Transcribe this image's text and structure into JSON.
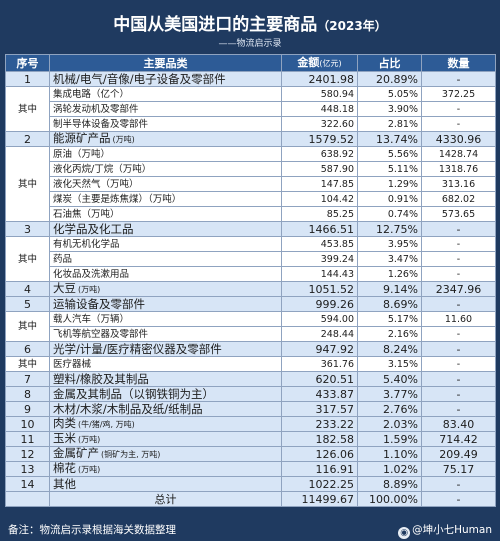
{
  "header": {
    "title": "中国从美国进口的主要商品",
    "year": "（2023年）",
    "subtitle": "——物流启示录"
  },
  "columns": {
    "seq": "序号",
    "category": "主要品类",
    "amount": "金额",
    "amount_unit": "(亿元)",
    "share": "占比",
    "quantity": "数量"
  },
  "rows": [
    {
      "seq": "1",
      "name": "机械/电气/音像/电子设备及零部件",
      "unit": "",
      "amount": "2401.98",
      "share": "20.89%",
      "qty": "-"
    },
    {
      "seq": "",
      "name": "集成电路（亿个）",
      "unit": "",
      "amount": "580.94",
      "share": "5.05%",
      "qty": "372.25"
    },
    {
      "seq": "",
      "name": "涡轮发动机及零部件",
      "unit": "",
      "amount": "448.18",
      "share": "3.90%",
      "qty": "-"
    },
    {
      "seq": "",
      "name": "制半导体设备及零部件",
      "unit": "",
      "amount": "322.60",
      "share": "2.81%",
      "qty": "-"
    },
    {
      "seq": "2",
      "name": "能源矿产品",
      "unit": "(万吨)",
      "amount": "1579.52",
      "share": "13.74%",
      "qty": "4330.96"
    },
    {
      "seq": "",
      "name": "原油（万吨）",
      "unit": "",
      "amount": "638.92",
      "share": "5.56%",
      "qty": "1428.74"
    },
    {
      "seq": "",
      "name": "液化丙烷/丁烷（万吨）",
      "unit": "",
      "amount": "587.90",
      "share": "5.11%",
      "qty": "1318.76"
    },
    {
      "seq": "",
      "name": "液化天然气（万吨）",
      "unit": "",
      "amount": "147.85",
      "share": "1.29%",
      "qty": "313.16"
    },
    {
      "seq": "",
      "name": "煤炭（主要是炼焦煤）（万吨）",
      "unit": "",
      "amount": "104.42",
      "share": "0.91%",
      "qty": "682.02"
    },
    {
      "seq": "",
      "name": "石油焦（万吨）",
      "unit": "",
      "amount": "85.25",
      "share": "0.74%",
      "qty": "573.65"
    },
    {
      "seq": "3",
      "name": "化学品及化工品",
      "unit": "",
      "amount": "1466.51",
      "share": "12.75%",
      "qty": "-"
    },
    {
      "seq": "",
      "name": "有机无机化学品",
      "unit": "",
      "amount": "453.85",
      "share": "3.95%",
      "qty": "-"
    },
    {
      "seq": "",
      "name": "药品",
      "unit": "",
      "amount": "399.24",
      "share": "3.47%",
      "qty": "-"
    },
    {
      "seq": "",
      "name": "化妆品及洗漱用品",
      "unit": "",
      "amount": "144.43",
      "share": "1.26%",
      "qty": "-"
    },
    {
      "seq": "4",
      "name": "大豆",
      "unit": "(万吨)",
      "amount": "1051.52",
      "share": "9.14%",
      "qty": "2347.96"
    },
    {
      "seq": "5",
      "name": "运输设备及零部件",
      "unit": "",
      "amount": "999.26",
      "share": "8.69%",
      "qty": "-"
    },
    {
      "seq": "",
      "name": "载人汽车（万辆）",
      "unit": "",
      "amount": "594.00",
      "share": "5.17%",
      "qty": "11.60"
    },
    {
      "seq": "",
      "name": "飞机等航空器及零部件",
      "unit": "",
      "amount": "248.44",
      "share": "2.16%",
      "qty": "-"
    },
    {
      "seq": "6",
      "name": "光学/计量/医疗精密仪器及零部件",
      "unit": "",
      "amount": "947.92",
      "share": "8.24%",
      "qty": "-"
    },
    {
      "seq": "",
      "name": "医疗器械",
      "unit": "",
      "amount": "361.76",
      "share": "3.15%",
      "qty": "-"
    },
    {
      "seq": "7",
      "name": "塑料/橡胶及其制品",
      "unit": "",
      "amount": "620.51",
      "share": "5.40%",
      "qty": "-"
    },
    {
      "seq": "8",
      "name": "金属及其制品（以钢铁铜为主）",
      "unit": "",
      "amount": "433.87",
      "share": "3.77%",
      "qty": "-"
    },
    {
      "seq": "9",
      "name": "木材/木浆/木制品及纸/纸制品",
      "unit": "",
      "amount": "317.57",
      "share": "2.76%",
      "qty": "-"
    },
    {
      "seq": "10",
      "name": "肉类",
      "unit": "(牛/猪/鸡, 万吨)",
      "amount": "233.22",
      "share": "2.03%",
      "qty": "83.40"
    },
    {
      "seq": "11",
      "name": "玉米",
      "unit": "(万吨)",
      "amount": "182.58",
      "share": "1.59%",
      "qty": "714.42"
    },
    {
      "seq": "12",
      "name": "金属矿产",
      "unit": "(铜矿为主, 万吨)",
      "amount": "126.06",
      "share": "1.10%",
      "qty": "209.49"
    },
    {
      "seq": "13",
      "name": "棉花",
      "unit": "(万吨)",
      "amount": "116.91",
      "share": "1.02%",
      "qty": "75.17"
    },
    {
      "seq": "14",
      "name": "其他",
      "unit": "",
      "amount": "1022.25",
      "share": "8.89%",
      "qty": "-"
    }
  ],
  "qizhong": "其中",
  "total": {
    "label": "总计",
    "amount": "11499.67",
    "share": "100.00%",
    "qty": "-"
  },
  "footer": {
    "note": "备注：物流启示录根据海关数据整理",
    "brand": "@坤小七Human",
    "brand_icon": "weibo-icon"
  }
}
